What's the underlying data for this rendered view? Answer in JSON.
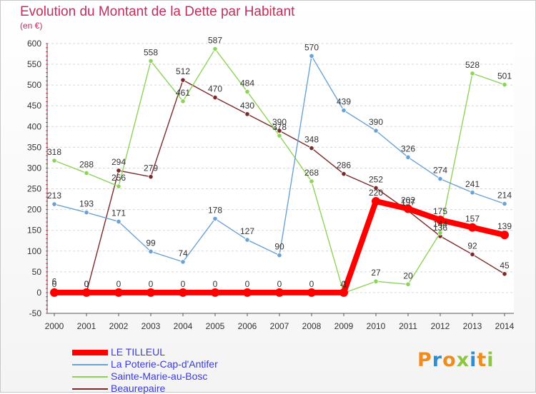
{
  "title": "Evolution du Montant de la Dette par Habitant",
  "subtitle": "(en €)",
  "logo": {
    "text": "Proxiti",
    "colors": [
      "#f08c1e",
      "#2a8fd6",
      "#f08c1e",
      "#8dc63f",
      "#2a8fd6",
      "#f08c1e",
      "#8dc63f"
    ]
  },
  "chart_data": {
    "type": "line",
    "title": "Evolution du Montant de la Dette par Habitant",
    "subtitle": "(en €)",
    "x": [
      "2000",
      "2001",
      "2002",
      "2003",
      "2004",
      "2005",
      "2006",
      "2007",
      "2008",
      "2009",
      "2010",
      "2011",
      "2012",
      "2013",
      "2014"
    ],
    "ylim": [
      -50,
      600
    ],
    "yticks": [
      -50,
      0,
      50,
      100,
      150,
      200,
      250,
      300,
      350,
      400,
      450,
      500,
      550,
      600
    ],
    "grid": true,
    "legend_position": "bottom",
    "series": [
      {
        "name": "LE TILLEUL",
        "color": "#ff0000",
        "values": [
          0,
          0,
          0,
          0,
          0,
          0,
          0,
          0,
          0,
          0,
          220,
          202,
          175,
          157,
          139
        ]
      },
      {
        "name": "La Poterie-Cap-d'Antifer",
        "color": "#6aa2d4",
        "values": [
          213,
          193,
          171,
          99,
          74,
          178,
          127,
          90,
          570,
          439,
          390,
          326,
          274,
          241,
          214
        ]
      },
      {
        "name": "Sainte-Marie-au-Bosc",
        "color": "#8dd35a",
        "values": [
          318,
          288,
          256,
          558,
          461,
          587,
          484,
          378,
          268,
          -1,
          27,
          20,
          144,
          528,
          501
        ]
      },
      {
        "name": "Beaurepaire",
        "color": "#7a2a2a",
        "values": [
          6,
          0,
          294,
          279,
          512,
          470,
          430,
          390,
          348,
          286,
          252,
          197,
          136,
          92,
          45
        ]
      }
    ]
  }
}
